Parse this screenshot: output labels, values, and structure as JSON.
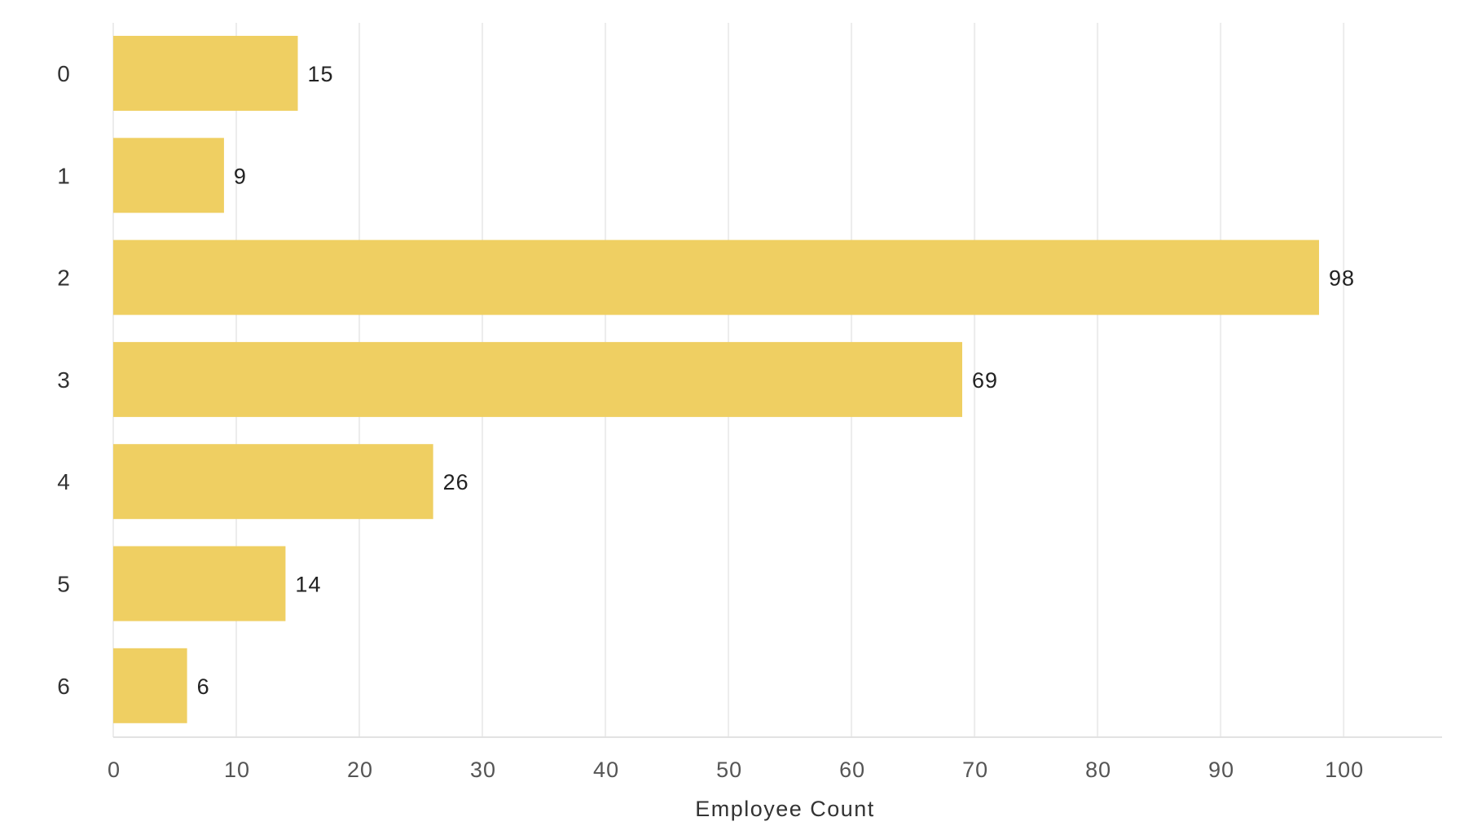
{
  "colors": {
    "bar": "#efcf62",
    "grid": "#ececec",
    "background": "#ffffff"
  },
  "chart_data": {
    "type": "bar",
    "orientation": "horizontal",
    "categories": [
      "0",
      "1",
      "2",
      "3",
      "4",
      "5",
      "6"
    ],
    "values": [
      15,
      9,
      98,
      69,
      26,
      14,
      6
    ],
    "data_labels": [
      "15",
      "9",
      "98",
      "69",
      "26",
      "14",
      "6"
    ],
    "title": "",
    "xlabel": "Employee Count",
    "ylabel": "",
    "xlim": [
      0,
      108
    ],
    "xticks": [
      0,
      10,
      20,
      30,
      40,
      50,
      60,
      70,
      80,
      90,
      100
    ],
    "xtick_labels": [
      "0",
      "10",
      "20",
      "30",
      "40",
      "50",
      "60",
      "70",
      "80",
      "90",
      "100"
    ],
    "grid": "vertical",
    "legend": "none"
  }
}
